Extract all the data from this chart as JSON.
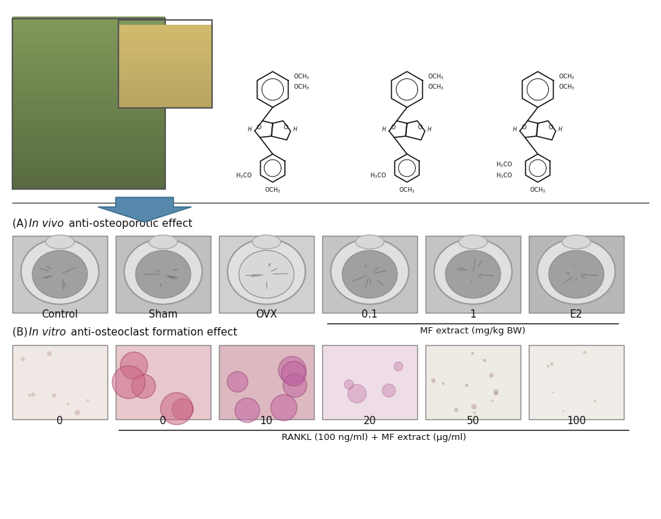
{
  "background_color": "#ffffff",
  "section_A_label": "(A) ",
  "section_A_italic": "In vivo",
  "section_A_rest": " anti-osteoporotic effect",
  "section_B_label": "(B) ",
  "section_B_italic": "In vitro",
  "section_B_rest": " anti-osteoclast formation effect",
  "vivo_labels": [
    "Control",
    "Sham",
    "OVX",
    "0.1",
    "1",
    "E2"
  ],
  "mf_extract_label": "MF extract (mg/kg BW)",
  "vitro_labels": [
    "0",
    "0",
    "10",
    "20",
    "50",
    "100"
  ],
  "rankl_label": "RANKL (100 ng/ml) + MF extract (μg/ml)",
  "arrow_color": "#5588aa",
  "label_fontsize": 11
}
